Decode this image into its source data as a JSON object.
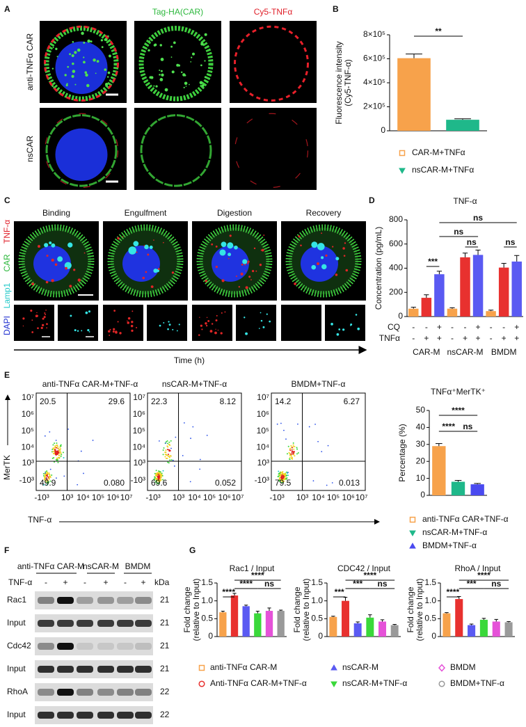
{
  "panel_labels": [
    "A",
    "B",
    "C",
    "D",
    "E",
    "F",
    "G"
  ],
  "panel_a": {
    "columns": [
      "Tag-HA(CAR)",
      "Cy5-TNFα"
    ],
    "rows": [
      "anti-TNFα CAR",
      "nsCAR"
    ]
  },
  "panel_c": {
    "columns": [
      "Binding",
      "Engulfment",
      "Digestion",
      "Recovery"
    ],
    "stains": [
      "TNF-α",
      "CAR",
      "Lamp1",
      "DAPI"
    ],
    "axis": "Time (h)"
  },
  "panel_e_flow": {
    "ylabel": "MerTK",
    "xlabel": "TNF-α",
    "yticks": [
      "10⁷",
      "10⁶",
      "10⁵",
      "10⁴",
      "10³",
      "-10³"
    ],
    "xticks": [
      "-10³",
      "10³",
      "10⁴",
      "10⁵",
      "10⁶",
      "10⁷"
    ],
    "plots": [
      {
        "title": "anti-TNFα CAR-M+TNF-α",
        "quadrants": [
          "20.5",
          "29.6",
          "49.9",
          "0.080"
        ]
      },
      {
        "title": "nsCAR-M+TNF-α",
        "quadrants": [
          "22.3",
          "8.12",
          "69.6",
          "0.052"
        ]
      },
      {
        "title": "BMDM+TNF-α",
        "quadrants": [
          "14.2",
          "6.27",
          "79.5",
          "0.013"
        ]
      }
    ]
  },
  "panel_f": {
    "groups": [
      "anti-TNFα CAR-M",
      "nsCAR-M",
      "BMDM"
    ],
    "treatment": "TNF-α",
    "signs": [
      "-",
      "+",
      "-",
      "+",
      "-",
      "+"
    ],
    "unit": "kDa",
    "rows": [
      {
        "label": "Rac1",
        "kda": 21
      },
      {
        "label": "Input",
        "kda": 21
      },
      {
        "label": "Cdc42",
        "kda": 21
      },
      {
        "label": "Input",
        "kda": 21
      },
      {
        "label": "RhoA",
        "kda": 22
      },
      {
        "label": "Input",
        "kda": 22
      }
    ]
  },
  "panel_g_legend": [
    "anti-TNFα CAR-M",
    "Anti-TNFα CAR-M+TNF-α",
    "nsCAR-M",
    "nsCAR-M+TNF-α",
    "BMDM",
    "BMDM+TNF-α"
  ],
  "chart_data": [
    {
      "type": "bar",
      "ylabel": [
        "Fluorescence intensity",
        "(Cy5-TNF-α)"
      ],
      "categories": [
        "CAR-M+TNFα",
        "nsCAR-M+TNFα"
      ],
      "values": [
        605000,
        92000
      ],
      "errors": [
        35000,
        8000
      ],
      "colors": [
        "#f7a24b",
        "#1fb88a"
      ],
      "ylim": [
        0,
        800000
      ],
      "yticks": [
        0,
        {
          "value": 200000,
          "label": "2×10⁵"
        },
        {
          "value": 400000,
          "label": "4×10⁵"
        },
        {
          "value": 600000,
          "label": "6×10⁵"
        },
        {
          "value": 800000,
          "label": "8×10⁵"
        }
      ],
      "significance": [
        "**"
      ]
    },
    {
      "type": "bar",
      "title": "TNF-α",
      "ylabel": "Concentration (pg/mL)",
      "categories": [
        "CAR-M",
        "nsCAR-M",
        "BMDM"
      ],
      "series": [
        {
          "color": "#f7a24b",
          "values": [
            65,
            65,
            45
          ],
          "errors": [
            12,
            8,
            8
          ]
        },
        {
          "color": "#e8312f",
          "values": [
            155,
            490,
            405
          ],
          "errors": [
            25,
            35,
            35
          ]
        },
        {
          "color": "#5a5af2",
          "values": [
            350,
            510,
            455
          ],
          "errors": [
            25,
            40,
            50
          ]
        }
      ],
      "conditions": [
        {
          "label": "CQ",
          "signs": [
            "-",
            "-",
            "+",
            "-",
            "-",
            "+",
            "-",
            "-",
            "+"
          ]
        },
        {
          "label": "TNFα",
          "signs": [
            "-",
            "+",
            "+",
            "-",
            "+",
            "+",
            "-",
            "+",
            "+"
          ]
        }
      ],
      "ylim": [
        0,
        800
      ],
      "yticks": [
        0,
        200,
        400,
        600,
        800
      ],
      "significance": [
        "***",
        "ns",
        "ns",
        "ns",
        "ns"
      ]
    },
    {
      "type": "bar",
      "title": "TNFα⁺MerTK⁺",
      "ylabel": "Percentage (%)",
      "categories": [
        "anti-TNFα CAR+TNF-α",
        "nsCAR-M+TNF-α",
        "BMDM+TNF-α"
      ],
      "values": [
        29,
        8,
        6.5
      ],
      "errors": [
        1.5,
        0.8,
        0.5
      ],
      "colors": [
        "#f7a24b",
        "#1fb88a",
        "#4a4af0"
      ],
      "ylim": [
        0,
        50
      ],
      "yticks": [
        0,
        10,
        20,
        30,
        40,
        50
      ],
      "significance": [
        "****",
        "****",
        "ns"
      ]
    },
    {
      "type": "bar",
      "title": "Rac1 / Input",
      "ylabel": [
        "Fold change",
        "(relative to Input)"
      ],
      "values": [
        0.68,
        1.15,
        0.85,
        0.65,
        0.72,
        0.72
      ],
      "errors": [
        0.03,
        0.06,
        0.03,
        0.06,
        0.08,
        0.02
      ],
      "colors": [
        "#f7a24b",
        "#e8312f",
        "#5a5af2",
        "#3ad83a",
        "#e552d8",
        "#9a9a9a"
      ],
      "ylim": [
        0,
        1.5
      ],
      "yticks": [
        0,
        0.5,
        {
          "value": 1,
          "label": "1.0"
        },
        1.5
      ],
      "significance": [
        "****",
        "****",
        "****",
        "ns"
      ]
    },
    {
      "type": "bar",
      "title": "CDC42 / Input",
      "ylabel": [
        "Fold change",
        "(relative to Input)"
      ],
      "values": [
        0.55,
        1.0,
        0.37,
        0.53,
        0.42,
        0.32
      ],
      "errors": [
        0.02,
        0.1,
        0.04,
        0.08,
        0.05,
        0.02
      ],
      "colors": [
        "#f7a24b",
        "#e8312f",
        "#5a5af2",
        "#3ad83a",
        "#e552d8",
        "#9a9a9a"
      ],
      "ylim": [
        0,
        1.5
      ],
      "yticks": [
        0,
        0.5,
        {
          "value": 1,
          "label": "1.0"
        },
        1.5
      ],
      "significance": [
        "***",
        "***",
        "****",
        "ns"
      ]
    },
    {
      "type": "bar",
      "title": "RhoA / Input",
      "ylabel": [
        "Fold change",
        "(relative to Input)"
      ],
      "values": [
        0.65,
        1.05,
        0.32,
        0.47,
        0.42,
        0.4
      ],
      "errors": [
        0.02,
        0.07,
        0.03,
        0.04,
        0.06,
        0.02
      ],
      "colors": [
        "#f7a24b",
        "#e8312f",
        "#5a5af2",
        "#3ad83a",
        "#e552d8",
        "#9a9a9a"
      ],
      "ylim": [
        0,
        1.5
      ],
      "yticks": [
        0,
        0.5,
        {
          "value": 1,
          "label": "1.0"
        },
        1.5
      ],
      "significance": [
        "****",
        "***",
        "****",
        "ns"
      ]
    }
  ]
}
